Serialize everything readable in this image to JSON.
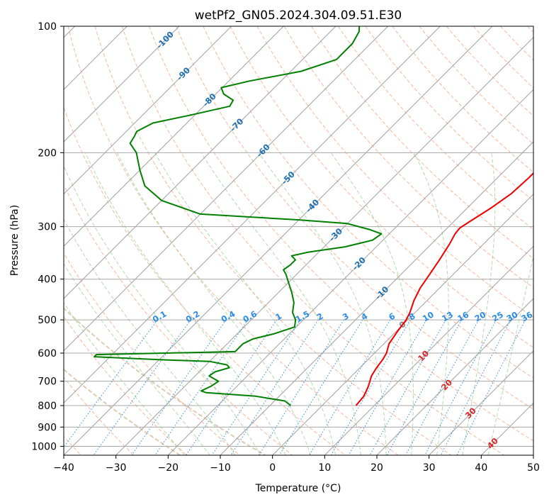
{
  "chart_data": {
    "type": "line",
    "diagram": "skew-T log-P",
    "title": "wetPf2_GN05.2024.304.09.51.E30",
    "xlabel": "Temperature (°C)",
    "ylabel": "Pressure (hPa)",
    "xlim": [
      -40,
      50
    ],
    "ylim": [
      1050,
      100
    ],
    "y_scale": "log",
    "x_ticks": [
      -40,
      -30,
      -20,
      -10,
      0,
      10,
      20,
      30,
      40,
      50
    ],
    "x_tick_labels": [
      "−40",
      "−30",
      "−20",
      "−10",
      "0",
      "10",
      "20",
      "30",
      "40",
      "50"
    ],
    "y_ticks": [
      1000,
      900,
      800,
      700,
      600,
      500,
      400,
      300,
      200,
      100
    ],
    "y_tick_labels": [
      "1000",
      "900",
      "800",
      "700",
      "600",
      "500",
      "400",
      "300",
      "200",
      "100"
    ],
    "grid": true,
    "colors": {
      "temperature": "#ee0000",
      "dewpoint": "#008000",
      "isotherm": "#a0a0a0",
      "dry_adiabat": "#f4a582",
      "moist_adiabat": "#a6d7a0",
      "mixing_ratio": "#2b8ce6",
      "frost_point": "#d9c7a8",
      "isotherm_label": "#1f6fb0",
      "warm_label": "#d62728"
    },
    "isotherm_labels": [
      "-100",
      "-90",
      "-80",
      "-70",
      "-60",
      "-50",
      "-40",
      "-30",
      "-20",
      "-10",
      "0",
      "10",
      "20",
      "30",
      "40"
    ],
    "mixing_ratio_labels": [
      "0.1",
      "0.2",
      "0.4",
      "0.6",
      "1",
      "1.5",
      "2",
      "3",
      "4",
      "6",
      "8",
      "10",
      "13",
      "16",
      "20",
      "25",
      "30",
      "36"
    ],
    "series": [
      {
        "key": "temperature",
        "p": [
          800,
          760,
          720,
          680,
          650,
          620,
          600,
          570,
          530,
          500,
          480,
          450,
          420,
          390,
          360,
          330,
          312,
          302,
          290,
          270,
          250,
          230,
          210,
          200,
          190,
          180,
          170,
          160,
          150,
          140,
          130,
          120,
          110,
          100
        ],
        "t": [
          6.5,
          6.2,
          5.2,
          3.8,
          3.2,
          2.8,
          2.3,
          1.0,
          0.2,
          -0.3,
          -1.0,
          -2.5,
          -3.7,
          -4.5,
          -5.4,
          -6.5,
          -7.4,
          -7.6,
          -6.8,
          -5.4,
          -4.3,
          -4.0,
          -4.0,
          -4.1,
          -4.6,
          -5.2,
          -6.5,
          -7.5,
          -9.0,
          -10.8,
          -12.8,
          -14.6,
          -17.3,
          -19.0
        ]
      },
      {
        "key": "dewpoint",
        "p": [
          800,
          780,
          760,
          745,
          738,
          720,
          700,
          680,
          665,
          650,
          640,
          628,
          622,
          612,
          605,
          595,
          570,
          555,
          540,
          520,
          500,
          480,
          455,
          430,
          410,
          390,
          380,
          370,
          360,
          352,
          345,
          335,
          323,
          312,
          305,
          295,
          289,
          280,
          260,
          240,
          220,
          200,
          190,
          183,
          178,
          170,
          163,
          155,
          150,
          145,
          140,
          135,
          128,
          120,
          110,
          103,
          100
        ],
        "t": [
          -6.0,
          -8.0,
          -14.5,
          -24.7,
          -26.0,
          -25.0,
          -24.5,
          -27.3,
          -27.0,
          -25.0,
          -26.0,
          -30.0,
          -40.0,
          -53.0,
          -53.0,
          -27.0,
          -27.0,
          -26.0,
          -23.0,
          -20.3,
          -21.5,
          -23.5,
          -25.1,
          -27.5,
          -29.7,
          -32.0,
          -33.4,
          -33.0,
          -33.0,
          -34.5,
          -32.0,
          -26.0,
          -22.0,
          -21.5,
          -24.5,
          -30.0,
          -40.0,
          -60.0,
          -70.0,
          -76.0,
          -80.0,
          -84.0,
          -87.0,
          -87.5,
          -88.0,
          -86.5,
          -81.0,
          -75.0,
          -75.5,
          -78.5,
          -80.2,
          -76.0,
          -68.0,
          -63.5,
          -63.5,
          -64.5,
          -65.5
        ]
      }
    ]
  }
}
